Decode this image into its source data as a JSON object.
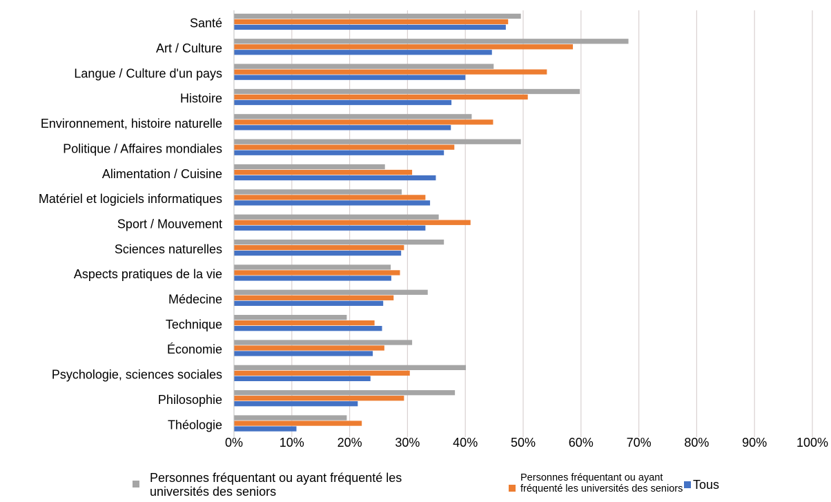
{
  "chart_data": {
    "type": "bar",
    "orientation": "horizontal",
    "categories": [
      "Santé",
      "Art / Culture",
      "Langue / Culture d'un pays",
      "Histoire",
      "Environnement, histoire naturelle",
      "Politique / Affaires mondiales",
      "Alimentation / Cuisine",
      "Matériel et logiciels informatiques",
      "Sport / Mouvement",
      "Sciences naturelles",
      "Aspects pratiques de la vie",
      "Médecine",
      "Technique",
      "Économie",
      "Psychologie, sciences sociales",
      "Philosophie",
      "Théologie"
    ],
    "series": [
      {
        "name": "Personnes fréquentant ou ayant fréquenté les universités des seniors",
        "color": "#a5a5a5",
        "values": [
          49.6,
          68.2,
          44.9,
          59.8,
          41.1,
          49.6,
          26.1,
          29.0,
          35.4,
          36.3,
          27.1,
          33.5,
          19.5,
          30.8,
          40.1,
          38.2,
          19.5
        ]
      },
      {
        "name": "Personnes fréquentant ou ayant fréquenté les universités des seniors",
        "color": "#ed7d31",
        "values": [
          47.4,
          58.6,
          54.1,
          50.8,
          44.8,
          38.1,
          30.8,
          33.1,
          40.9,
          29.4,
          28.7,
          27.6,
          24.3,
          26.0,
          30.4,
          29.4,
          22.1
        ]
      },
      {
        "name": "Tous",
        "color": "#4472c4",
        "values": [
          47.0,
          44.6,
          40.0,
          37.6,
          37.5,
          36.3,
          34.9,
          33.9,
          33.1,
          28.9,
          27.2,
          25.8,
          25.6,
          24.0,
          23.6,
          21.4,
          10.8
        ]
      }
    ],
    "xlim": [
      0,
      100
    ],
    "x_ticks": [
      "0%",
      "10%",
      "20%",
      "30%",
      "40%",
      "50%",
      "60%",
      "70%",
      "80%",
      "90%",
      "100%"
    ],
    "unit": "%",
    "grid": "vertical",
    "legend_position": "bottom"
  },
  "legend": {
    "series1_label": "Personnes fréquentant ou ayant fréquenté les universités des seniors",
    "series2_label": "Personnes fréquentant ou ayant fréquenté les universités des seniors",
    "series3_label": "Tous"
  }
}
